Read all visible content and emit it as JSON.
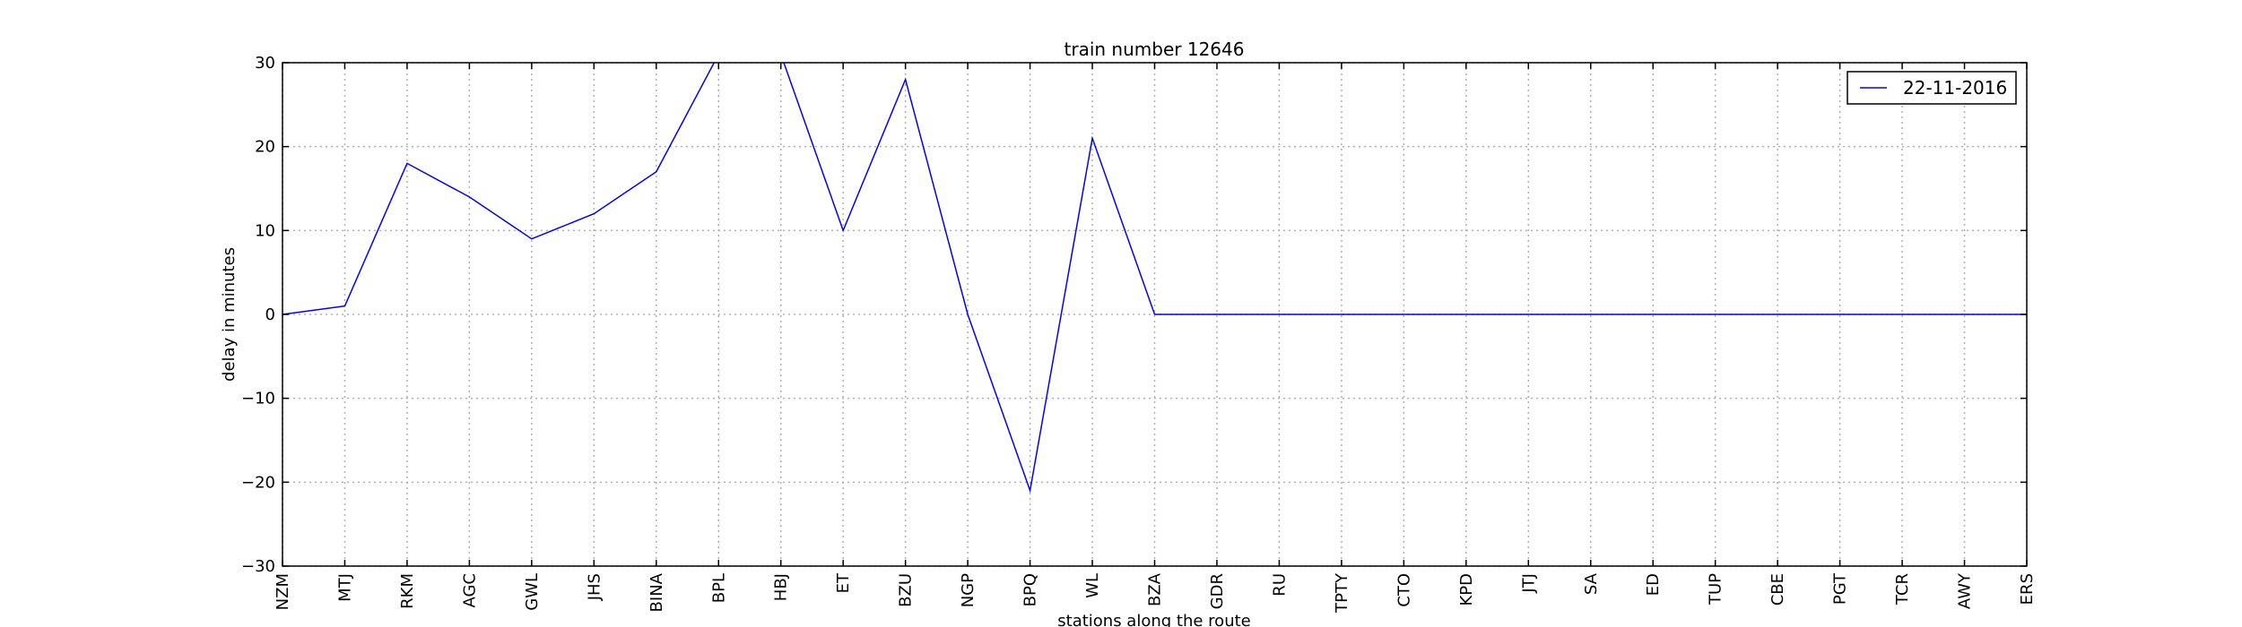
{
  "chart_data": {
    "type": "line",
    "title": "train number 12646",
    "xlabel": "stations along the route",
    "ylabel": "delay in minutes",
    "ylim": [
      -30,
      30
    ],
    "yticks": [
      -30,
      -20,
      -10,
      0,
      10,
      20,
      30
    ],
    "ytick_labels": [
      "−30",
      "−20",
      "−10",
      "0",
      "10",
      "20",
      "30"
    ],
    "grid": true,
    "legend_position": "top-right",
    "categories": [
      "NZM",
      "MTJ",
      "RKM",
      "AGC",
      "GWL",
      "JHS",
      "BINA",
      "BPL",
      "HBJ",
      "ET",
      "BZU",
      "NGP",
      "BPQ",
      "WL",
      "BZA",
      "GDR",
      "RU",
      "TPTY",
      "CTO",
      "KPD",
      "JTJ",
      "SA",
      "ED",
      "TUP",
      "CBE",
      "PGT",
      "TCR",
      "AWY",
      "ERS"
    ],
    "series": [
      {
        "name": "22-11-2016",
        "color": "#0000ff",
        "values": [
          0,
          1,
          18,
          14,
          9,
          12,
          17,
          31,
          31,
          10,
          28,
          0,
          -21,
          21,
          0,
          0,
          0,
          0,
          0,
          0,
          0,
          0,
          0,
          0,
          0,
          0,
          0,
          0,
          0
        ]
      }
    ]
  }
}
